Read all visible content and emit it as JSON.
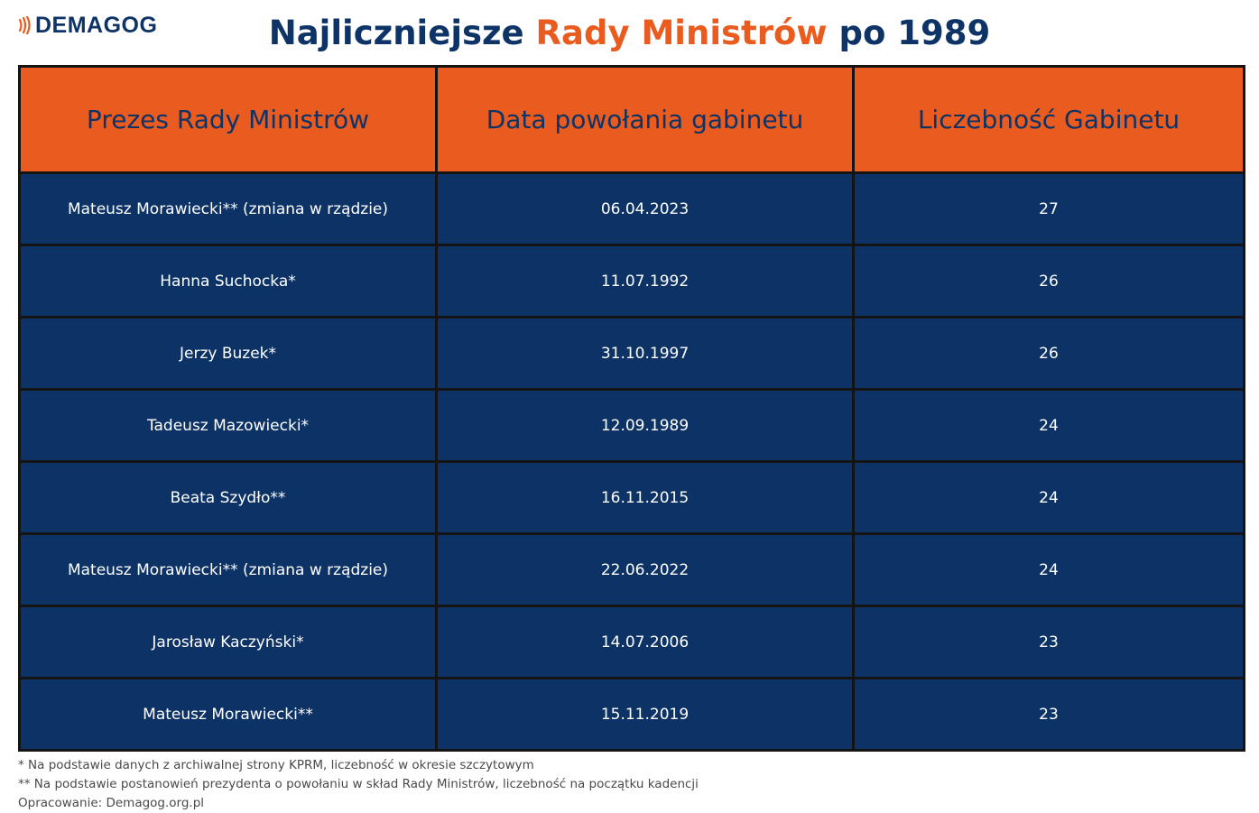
{
  "brand": {
    "logo_text": "DEMAGOG",
    "logo_icon": "sound-waves-icon",
    "accent_color": "#e95b1e",
    "navy_color": "#0e3366"
  },
  "title": {
    "part1": "Najliczniejsze ",
    "part2": "Rady Ministrów",
    "part3": " po 1989"
  },
  "table": {
    "headers": [
      "Prezes Rady Ministrów",
      "Data powołania gabinetu",
      "Liczebność Gabinetu"
    ],
    "rows": [
      [
        "Mateusz Morawiecki** (zmiana w rządzie)",
        "06.04.2023",
        "27"
      ],
      [
        "Hanna Suchocka*",
        "11.07.1992",
        "26"
      ],
      [
        "Jerzy Buzek*",
        "31.10.1997",
        "26"
      ],
      [
        "Tadeusz Mazowiecki*",
        "12.09.1989",
        "24"
      ],
      [
        "Beata Szydło**",
        "16.11.2015",
        "24"
      ],
      [
        "Mateusz Morawiecki** (zmiana w rządzie)",
        "22.06.2022",
        "24"
      ],
      [
        "Jarosław Kaczyński*",
        "14.07.2006",
        "23"
      ],
      [
        "Mateusz Morawiecki**",
        "15.11.2019",
        "23"
      ]
    ]
  },
  "footnotes": [
    "* Na podstawie danych z archiwalnej strony KPRM, liczebność w okresie szczytowym",
    "** Na podstawie postanowień prezydenta o powołaniu w skład Rady Ministrów, liczebność na początku kadencji",
    "Opracowanie: Demagog.org.pl"
  ]
}
